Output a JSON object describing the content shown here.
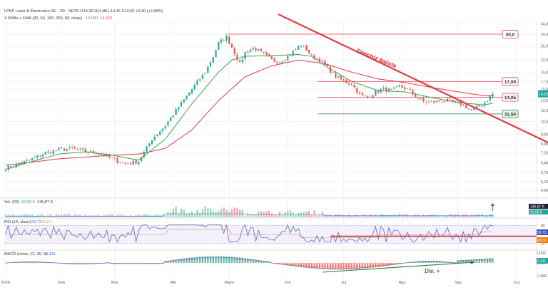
{
  "header": {
    "title_line": "LPKF Laser & Electronics SE · 1D · XETR  O14,30  H14,80  L14,15  C14,65  +0,30 (+2,09%)",
    "indicator_line": "4 SMAs + EMA (20, 50, 100, 200, 50, close)",
    "indicator_val1": "13,090",
    "indicator_val2": "14,016"
  },
  "colors": {
    "up": "#26a69a",
    "down": "#ef5350",
    "sma": "#43a047",
    "ema": "#e53945",
    "trendline": "#e53945",
    "rsi": "#5c6bc0",
    "rsi_ma": "#f29c50",
    "macd_line": "#2962ff",
    "signal_line": "#ff6d00",
    "hist_pos": "#26a69a",
    "hist_neg": "#ef5350",
    "div_line": "#2e7d32"
  },
  "chart_data": [
    {
      "type": "candlestick",
      "name": "price",
      "x_axis_labels": [
        "2026",
        "Feb",
        "Mar",
        "Abr",
        "Mayo",
        "Jun",
        "Jul",
        "Ago",
        "Sep",
        "Oct"
      ],
      "y_axis_scale": "log",
      "y_ticks": [
        "34,0",
        "30,0",
        "26,0",
        "22,0",
        "19,0",
        "17,00",
        "15,50",
        "13,50",
        "12,00",
        "10,50",
        "9,00",
        "8,00",
        "7,20",
        "6,40",
        "5,70",
        "5,10",
        "4,60"
      ],
      "price_labels": [
        {
          "text": "30,0",
          "value": 30.0,
          "style": "red"
        },
        {
          "text": "17,00",
          "value": 17.0,
          "style": "red"
        },
        {
          "text": "14,65",
          "value": 14.65,
          "style": "current"
        },
        {
          "text": "14,05",
          "value": 14.05,
          "style": "red"
        },
        {
          "text": "11,50",
          "value": 11.5,
          "style": "green"
        }
      ],
      "annotations": [
        {
          "text": "Directriz bajista"
        }
      ],
      "close_anchors": [
        [
          0,
          6.0
        ],
        [
          5,
          6.3
        ],
        [
          10,
          6.7
        ],
        [
          15,
          7.2
        ],
        [
          20,
          7.5
        ],
        [
          25,
          7.6
        ],
        [
          30,
          7.3
        ],
        [
          35,
          7.2
        ],
        [
          40,
          6.7
        ],
        [
          45,
          6.3
        ],
        [
          50,
          6.5
        ],
        [
          55,
          8.5
        ],
        [
          60,
          10.0
        ],
        [
          65,
          12.5
        ],
        [
          70,
          15.5
        ],
        [
          75,
          19.0
        ],
        [
          78,
          23.0
        ],
        [
          80,
          27.0
        ],
        [
          83,
          29.0
        ],
        [
          86,
          24.0
        ],
        [
          88,
          21.0
        ],
        [
          90,
          24.0
        ],
        [
          93,
          25.5
        ],
        [
          96,
          24.0
        ],
        [
          100,
          22.0
        ],
        [
          103,
          21.5
        ],
        [
          106,
          23.0
        ],
        [
          109,
          25.0
        ],
        [
          111,
          26.5
        ],
        [
          113,
          25.0
        ],
        [
          115,
          23.0
        ],
        [
          118,
          22.0
        ],
        [
          121,
          20.0
        ],
        [
          124,
          18.0
        ],
        [
          127,
          17.0
        ],
        [
          130,
          16.5
        ],
        [
          133,
          14.5
        ],
        [
          136,
          14.0
        ],
        [
          139,
          15.0
        ],
        [
          142,
          15.5
        ],
        [
          145,
          15.2
        ],
        [
          148,
          16.0
        ],
        [
          151,
          15.5
        ],
        [
          154,
          14.2
        ],
        [
          157,
          13.3
        ],
        [
          160,
          13.2
        ],
        [
          163,
          13.4
        ],
        [
          166,
          13.5
        ],
        [
          169,
          13.2
        ],
        [
          172,
          12.8
        ],
        [
          175,
          12.0
        ],
        [
          178,
          12.6
        ],
        [
          181,
          13.6
        ],
        [
          183,
          14.65
        ]
      ],
      "ema_anchors": [
        [
          0,
          6.2
        ],
        [
          20,
          6.7
        ],
        [
          40,
          7.0
        ],
        [
          50,
          7.1
        ],
        [
          60,
          7.6
        ],
        [
          70,
          9.5
        ],
        [
          80,
          13.5
        ],
        [
          90,
          18.0
        ],
        [
          100,
          20.5
        ],
        [
          110,
          22.0
        ],
        [
          120,
          21.0
        ],
        [
          130,
          19.0
        ],
        [
          140,
          17.5
        ],
        [
          150,
          16.8
        ],
        [
          160,
          15.8
        ],
        [
          170,
          15.0
        ],
        [
          180,
          14.3
        ],
        [
          183,
          14.3
        ]
      ],
      "sma_anchors": [
        [
          0,
          5.9
        ],
        [
          10,
          6.5
        ],
        [
          20,
          7.1
        ],
        [
          30,
          7.3
        ],
        [
          40,
          7.0
        ],
        [
          50,
          6.6
        ],
        [
          60,
          8.5
        ],
        [
          70,
          13.0
        ],
        [
          80,
          19.0
        ],
        [
          85,
          22.0
        ],
        [
          90,
          23.0
        ],
        [
          100,
          23.2
        ],
        [
          110,
          23.5
        ],
        [
          115,
          23.0
        ],
        [
          120,
          20.5
        ],
        [
          130,
          17.0
        ],
        [
          140,
          15.2
        ],
        [
          150,
          15.0
        ],
        [
          160,
          14.0
        ],
        [
          170,
          13.2
        ],
        [
          180,
          12.8
        ],
        [
          183,
          13.09
        ]
      ]
    },
    {
      "type": "bar",
      "name": "volume",
      "label": "Vol. (20)",
      "value1": "92,08 K",
      "value2": "146,87 K",
      "axis_labels": [
        "146,87 K",
        "92,08 K"
      ]
    },
    {
      "type": "line",
      "name": "rsi",
      "label": "RSI (14, close)",
      "value1": "59,73",
      "value2": "43,01",
      "y_ticks": [
        "80",
        "20"
      ],
      "axis_labels": [
        "59,73",
        "43,01"
      ]
    },
    {
      "type": "line",
      "name": "macd",
      "label": "MACD (close, 12, 26, 9)",
      "value1": "0,311",
      "y_ticks": [
        "1,000",
        "0,000",
        "-1,000"
      ],
      "axis_labels": [
        "0,311"
      ],
      "annotations": [
        {
          "text": "Div. +"
        }
      ]
    }
  ]
}
